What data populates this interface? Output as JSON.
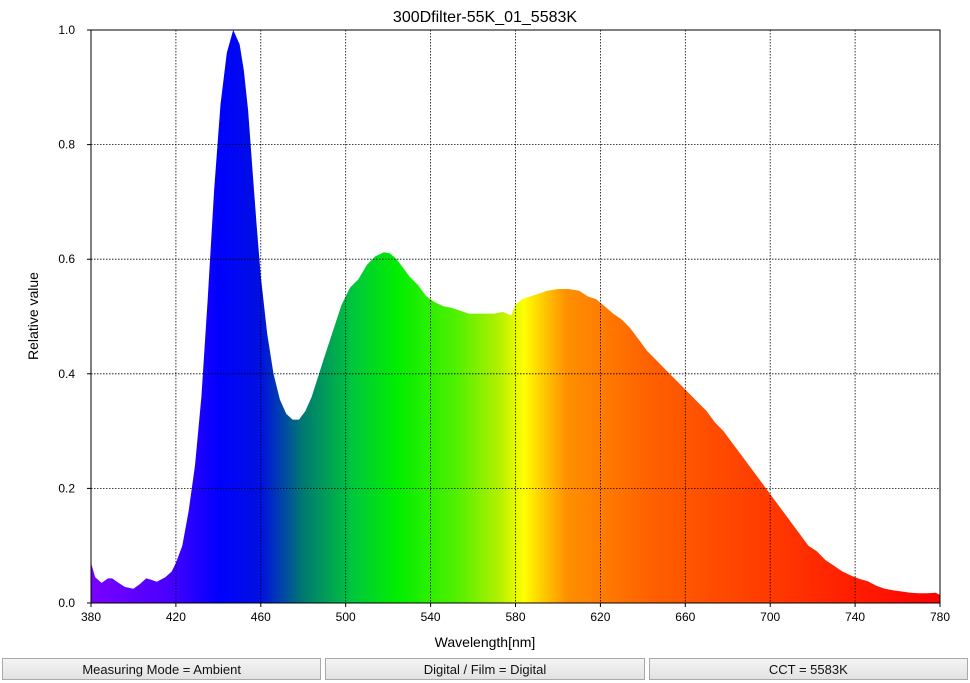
{
  "chart_data": {
    "type": "area",
    "title": "300Dfilter-55K_01_5583K",
    "xlabel": "Wavelength[nm]",
    "ylabel": "Relative value",
    "xlim": [
      380,
      780
    ],
    "ylim": [
      0,
      1.0
    ],
    "x_ticks": [
      380,
      420,
      460,
      500,
      540,
      580,
      620,
      660,
      700,
      740,
      780
    ],
    "x_tick_labels": [
      "380",
      "420",
      "460",
      "500",
      "540",
      "580",
      "620",
      "660",
      "700",
      "740",
      "780"
    ],
    "y_ticks": [
      0,
      0.2,
      0.4,
      0.6,
      0.8,
      1.0
    ],
    "y_tick_labels": [
      "0.0",
      "0.2",
      "0.4",
      "0.6",
      "0.8",
      "1.0"
    ],
    "grid": true,
    "fill": "spectral",
    "x": [
      380,
      382,
      385,
      388,
      390,
      393,
      396,
      400,
      403,
      406,
      408,
      411,
      415,
      418,
      420,
      423,
      426,
      429,
      432,
      435,
      438,
      441,
      444,
      447,
      450,
      452,
      454,
      456,
      458,
      460,
      463,
      466,
      469,
      472,
      475,
      478,
      481,
      484,
      487,
      490,
      494,
      498,
      502,
      506,
      510,
      514,
      518,
      521,
      524,
      527,
      530,
      534,
      538,
      542,
      546,
      550,
      554,
      558,
      562,
      566,
      570,
      574,
      578,
      580,
      583,
      587,
      591,
      595,
      600,
      605,
      610,
      614,
      618,
      622,
      626,
      630,
      634,
      638,
      642,
      646,
      650,
      654,
      658,
      662,
      666,
      670,
      674,
      678,
      682,
      686,
      690,
      694,
      698,
      702,
      706,
      710,
      714,
      718,
      722,
      726,
      730,
      734,
      738,
      742,
      746,
      750,
      754,
      758,
      762,
      766,
      770,
      774,
      778,
      780
    ],
    "values": [
      0.07,
      0.045,
      0.035,
      0.043,
      0.043,
      0.035,
      0.028,
      0.025,
      0.033,
      0.043,
      0.041,
      0.037,
      0.045,
      0.055,
      0.07,
      0.1,
      0.16,
      0.24,
      0.36,
      0.53,
      0.72,
      0.87,
      0.96,
      1.0,
      0.975,
      0.93,
      0.86,
      0.76,
      0.66,
      0.57,
      0.47,
      0.4,
      0.355,
      0.33,
      0.32,
      0.32,
      0.335,
      0.36,
      0.395,
      0.43,
      0.475,
      0.52,
      0.55,
      0.565,
      0.59,
      0.605,
      0.612,
      0.61,
      0.6,
      0.585,
      0.57,
      0.555,
      0.535,
      0.525,
      0.518,
      0.515,
      0.51,
      0.505,
      0.505,
      0.505,
      0.505,
      0.508,
      0.502,
      0.52,
      0.53,
      0.535,
      0.54,
      0.545,
      0.548,
      0.548,
      0.545,
      0.535,
      0.53,
      0.518,
      0.505,
      0.495,
      0.48,
      0.46,
      0.44,
      0.425,
      0.41,
      0.395,
      0.38,
      0.365,
      0.35,
      0.335,
      0.315,
      0.3,
      0.28,
      0.26,
      0.24,
      0.22,
      0.2,
      0.18,
      0.16,
      0.14,
      0.12,
      0.1,
      0.09,
      0.075,
      0.065,
      0.055,
      0.048,
      0.042,
      0.038,
      0.03,
      0.025,
      0.022,
      0.02,
      0.018,
      0.017,
      0.017,
      0.018,
      0.014
    ]
  },
  "status_bar": {
    "measuring_mode": "Measuring Mode = Ambient",
    "digital_film": "Digital / Film = Digital",
    "cct": "CCT = 5583K"
  }
}
